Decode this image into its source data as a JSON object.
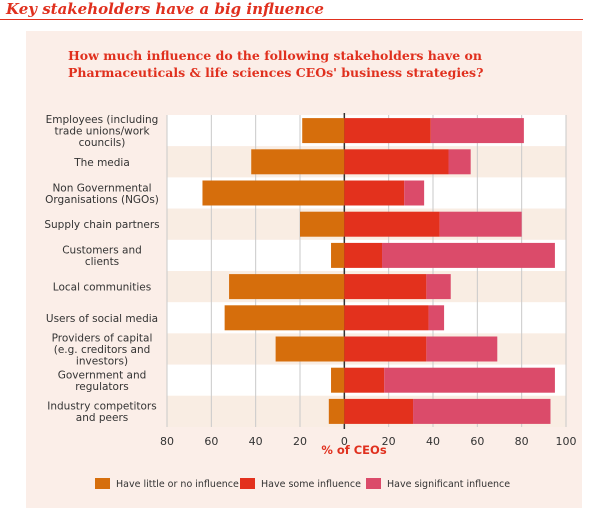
{
  "heading": "Key stakeholders have a big influence",
  "chart_data": {
    "type": "bar",
    "title": "How much influence do the following stakeholders have on Pharmaceuticals & life sciences CEOs' business strategies?",
    "xlabel": "% of CEOs",
    "xlim": [
      -80,
      100
    ],
    "xticks": [
      "80",
      "60",
      "40",
      "20",
      "0",
      "20",
      "40",
      "60",
      "80",
      "100"
    ],
    "grid": true,
    "legend_position": "bottom",
    "categories": [
      [
        "Employees (including",
        "trade unions/work",
        "councils)"
      ],
      [
        "The media"
      ],
      [
        "Non Governmental",
        "Organisations (NGOs)"
      ],
      [
        "Supply chain partners"
      ],
      [
        "Customers and",
        "clients"
      ],
      [
        "Local communities"
      ],
      [
        "Users of social media"
      ],
      [
        "Providers of capital",
        "(e.g. creditors and",
        "investors)"
      ],
      [
        "Government and",
        "regulators"
      ],
      [
        "Industry competitors",
        "and peers"
      ]
    ],
    "series": [
      {
        "name": "Have little or no influence",
        "color": "#d66e0c",
        "values": [
          19,
          42,
          64,
          20,
          6,
          52,
          54,
          31,
          6,
          7
        ]
      },
      {
        "name": "Have some influence",
        "color": "#e3311d",
        "values": [
          39,
          47,
          27,
          43,
          17,
          37,
          38,
          37,
          18,
          31
        ]
      },
      {
        "name": "Have significant influence",
        "color": "#db4b6a",
        "values": [
          42,
          10,
          9,
          37,
          78,
          11,
          7,
          32,
          77,
          62
        ]
      }
    ]
  }
}
